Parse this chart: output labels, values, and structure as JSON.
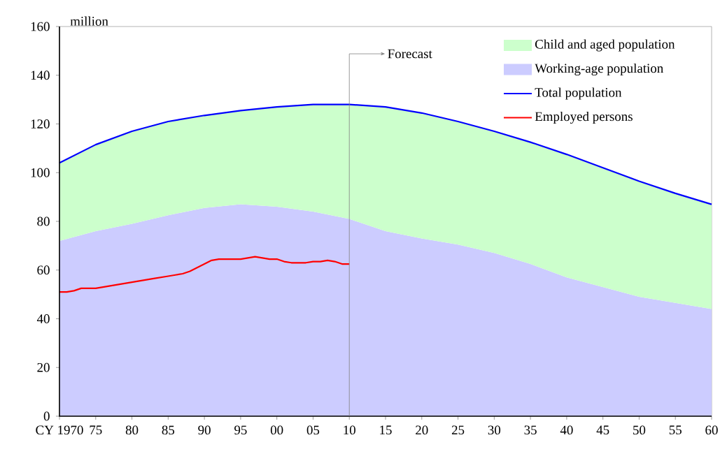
{
  "chart_data": {
    "type": "area",
    "stacked": true,
    "ylabel": "million",
    "x": [
      1970,
      1975,
      1980,
      1985,
      1990,
      1995,
      2000,
      2005,
      2010,
      2015,
      2020,
      2025,
      2030,
      2035,
      2040,
      2045,
      2050,
      2055,
      2060
    ],
    "series": [
      {
        "name": "Working-age population",
        "color": "#ccccff",
        "values": [
          72,
          76,
          79,
          82.5,
          85.5,
          87,
          86,
          84,
          81,
          76,
          73,
          70.5,
          67,
          62.5,
          57,
          53,
          49,
          46.5,
          44
        ]
      },
      {
        "name": "Child and aged population",
        "color": "#ccffcc",
        "values": [
          32,
          35.5,
          38,
          38.5,
          38,
          38.5,
          41,
          44,
          47,
          51,
          51.5,
          50.5,
          50,
          50,
          50.5,
          49,
          47.5,
          45,
          43
        ]
      },
      {
        "name": "Total population",
        "type": "line",
        "color": "#0000ff",
        "values": [
          104,
          111.5,
          117,
          121,
          123.5,
          125.5,
          127,
          128,
          128,
          127,
          124.5,
          121,
          117,
          112.5,
          107.5,
          102,
          96.5,
          91.5,
          87
        ]
      },
      {
        "name": "Employed persons",
        "type": "line",
        "color": "#ff0000",
        "x": [
          1970,
          1971,
          1972,
          1973,
          1974,
          1975,
          1976,
          1977,
          1978,
          1979,
          1980,
          1981,
          1982,
          1983,
          1984,
          1985,
          1986,
          1987,
          1988,
          1989,
          1990,
          1991,
          1992,
          1993,
          1994,
          1995,
          1996,
          1997,
          1998,
          1999,
          2000,
          2001,
          2002,
          2003,
          2004,
          2005,
          2006,
          2007,
          2008,
          2009,
          2010
        ],
        "values": [
          51,
          51,
          51.5,
          52.5,
          52.5,
          52.5,
          53,
          53.5,
          54,
          54.5,
          55,
          55.5,
          56,
          56.5,
          57,
          57.5,
          58,
          58.5,
          59.5,
          61,
          62.5,
          64,
          64.5,
          64.5,
          64.5,
          64.5,
          65,
          65.5,
          65,
          64.5,
          64.5,
          63.5,
          63,
          63,
          63,
          63.5,
          63.5,
          64,
          63.5,
          62.5,
          62.5
        ]
      }
    ],
    "xlim": [
      1970,
      2060
    ],
    "xticks": [
      {
        "value": 1970,
        "label": "CY 1970"
      },
      {
        "value": 1975,
        "label": "75"
      },
      {
        "value": 1980,
        "label": "80"
      },
      {
        "value": 1985,
        "label": "85"
      },
      {
        "value": 1990,
        "label": "90"
      },
      {
        "value": 1995,
        "label": "95"
      },
      {
        "value": 2000,
        "label": "00"
      },
      {
        "value": 2005,
        "label": "05"
      },
      {
        "value": 2010,
        "label": "10"
      },
      {
        "value": 2015,
        "label": "15"
      },
      {
        "value": 2020,
        "label": "20"
      },
      {
        "value": 2025,
        "label": "25"
      },
      {
        "value": 2030,
        "label": "30"
      },
      {
        "value": 2035,
        "label": "35"
      },
      {
        "value": 2040,
        "label": "40"
      },
      {
        "value": 2045,
        "label": "45"
      },
      {
        "value": 2050,
        "label": "50"
      },
      {
        "value": 2055,
        "label": "55"
      },
      {
        "value": 2060,
        "label": "60"
      }
    ],
    "ylim": [
      0,
      160
    ],
    "yticks": [
      0,
      20,
      40,
      60,
      80,
      100,
      120,
      140,
      160
    ],
    "ref_lines": [
      {
        "axis": "x",
        "value": 2010,
        "label": "Forecast",
        "color": "#808080"
      }
    ],
    "legend": "top right",
    "grid": false
  }
}
